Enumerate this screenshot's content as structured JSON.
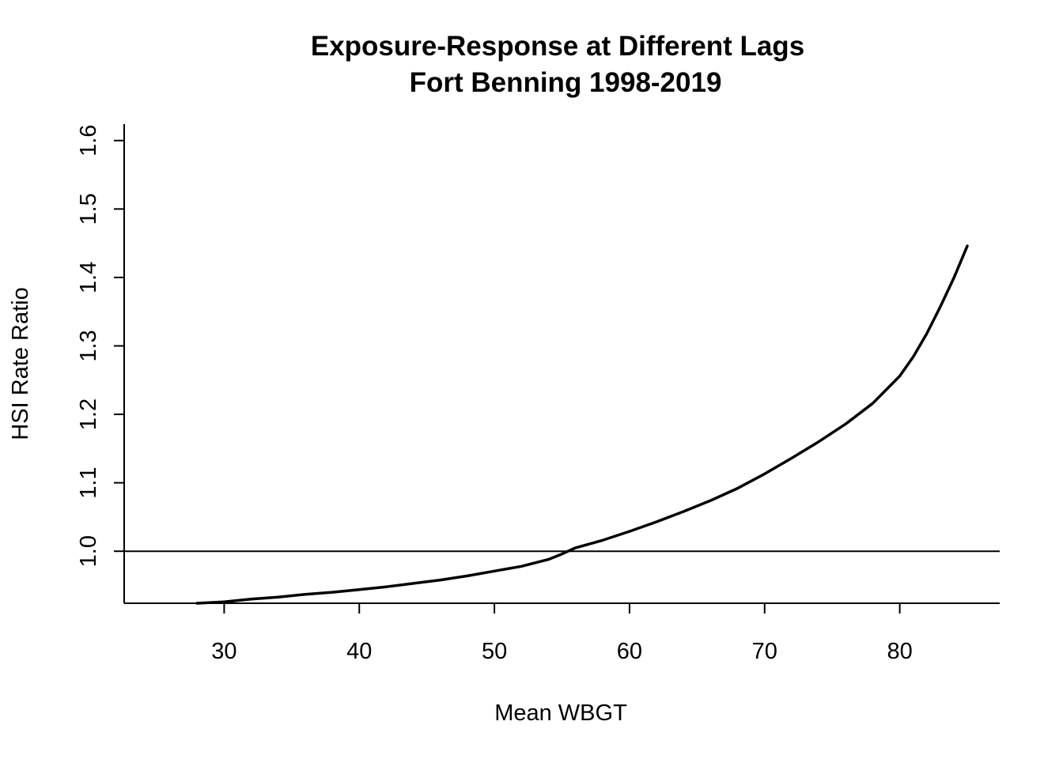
{
  "chart_data": {
    "type": "line",
    "title": "Exposure-Response at Different Lags",
    "subtitle": "Fort Benning 1998-2019",
    "xlabel": "Mean WBGT",
    "ylabel": "HSI Rate Ratio",
    "xlim": [
      22.6,
      87.4
    ],
    "ylim": [
      0.924,
      1.624
    ],
    "x_ticks": [
      30,
      40,
      50,
      60,
      70,
      80
    ],
    "y_ticks": [
      1.0,
      1.1,
      1.2,
      1.3,
      1.4,
      1.5,
      1.6
    ],
    "x_tick_labels": [
      "30",
      "40",
      "50",
      "60",
      "70",
      "80"
    ],
    "y_tick_labels": [
      "1.0",
      "1.1",
      "1.2",
      "1.3",
      "1.4",
      "1.5",
      "1.6"
    ],
    "reference_line": {
      "y": 1.0
    },
    "grid": false,
    "legend": "none",
    "series": [
      {
        "color": "#000000",
        "x": [
          28,
          30,
          32,
          34,
          36,
          38,
          40,
          42,
          44,
          46,
          48,
          50,
          52,
          54,
          55,
          56,
          58,
          60,
          62,
          64,
          66,
          68,
          70,
          72,
          74,
          76,
          78,
          80,
          81,
          82,
          83,
          84,
          85
        ],
        "y": [
          0.924,
          0.926,
          0.93,
          0.933,
          0.937,
          0.94,
          0.944,
          0.948,
          0.953,
          0.958,
          0.964,
          0.971,
          0.978,
          0.988,
          0.996,
          1.005,
          1.016,
          1.029,
          1.043,
          1.058,
          1.074,
          1.092,
          1.113,
          1.136,
          1.16,
          1.186,
          1.216,
          1.256,
          1.284,
          1.318,
          1.357,
          1.399,
          1.446
        ]
      }
    ]
  }
}
